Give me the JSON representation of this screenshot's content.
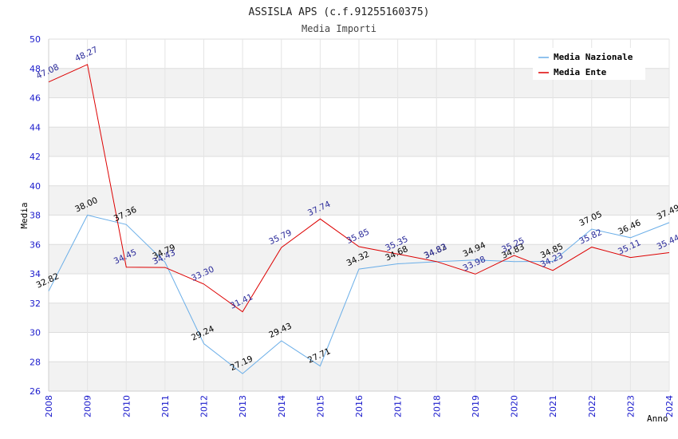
{
  "chart_data": {
    "type": "line",
    "title": "ASSISLA APS (c.f.91255160375)",
    "subtitle": "Media Importi",
    "xlabel": "Anno",
    "ylabel": "Media",
    "x": [
      "2008",
      "2009",
      "2010",
      "2011",
      "2012",
      "2013",
      "2014",
      "2015",
      "2016",
      "2017",
      "2018",
      "2019",
      "2020",
      "2021",
      "2022",
      "2023",
      "2024"
    ],
    "yticks": [
      "26",
      "28",
      "30",
      "32",
      "34",
      "36",
      "38",
      "40",
      "42",
      "44",
      "46",
      "48",
      "50"
    ],
    "ylim": [
      26,
      50
    ],
    "legend_position": "top-right",
    "series": [
      {
        "name": "Media Nazionale",
        "color": "#6aaee8",
        "values": [
          32.82,
          38.0,
          37.36,
          34.79,
          29.24,
          27.19,
          29.43,
          27.71,
          34.32,
          34.68,
          34.82,
          34.94,
          34.83,
          34.85,
          37.05,
          36.46,
          37.49
        ],
        "labels": [
          "32.82",
          "38.00",
          "37.36",
          "34.79",
          "29.24",
          "27.19",
          "29.43",
          "27.71",
          "34.32",
          "34.68",
          "34.82",
          "34.94",
          "34.83",
          "34.85",
          "37.05",
          "36.46",
          "37.49"
        ]
      },
      {
        "name": "Media Ente",
        "color": "#dd0000",
        "values": [
          47.08,
          48.27,
          34.45,
          34.43,
          33.3,
          31.41,
          35.79,
          37.74,
          35.85,
          35.35,
          34.83,
          33.98,
          35.25,
          34.23,
          35.82,
          35.11,
          35.44
        ],
        "labels": [
          "47.08",
          "48.27",
          "34.45",
          "34.43",
          "33.30",
          "31.41",
          "35.79",
          "37.74",
          "35.85",
          "35.35",
          "34.83",
          "33.98",
          "35.25",
          "34.23",
          "35.82",
          "35.11",
          "35.44"
        ]
      }
    ]
  }
}
